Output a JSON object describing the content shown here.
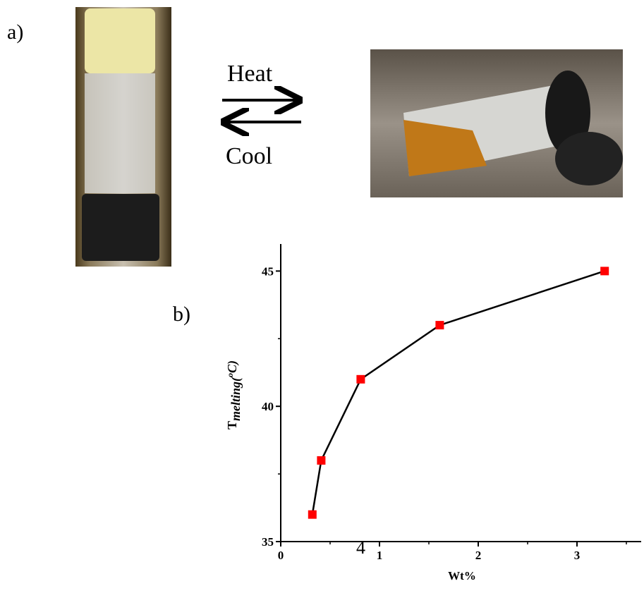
{
  "figure": {
    "panel_a": "a)",
    "panel_b": "b)",
    "heat": "Heat",
    "cool": "Cool",
    "page_number": "4"
  },
  "chart_data": {
    "type": "line",
    "xlabel": "Wt%",
    "ylabel": {
      "base": "T",
      "subscript": "melting(",
      "superscript": "o",
      "rest": "C)"
    },
    "x": [
      0.32,
      0.41,
      0.81,
      1.61,
      3.28
    ],
    "series": [
      {
        "color": "#ff0000",
        "values": [
          36,
          38,
          41,
          43,
          45
        ]
      }
    ],
    "xlim": [
      0,
      3.65
    ],
    "ylim": [
      35,
      46
    ],
    "xticks": [
      0,
      1,
      2,
      3
    ],
    "yticks": [
      35,
      40,
      45
    ]
  }
}
